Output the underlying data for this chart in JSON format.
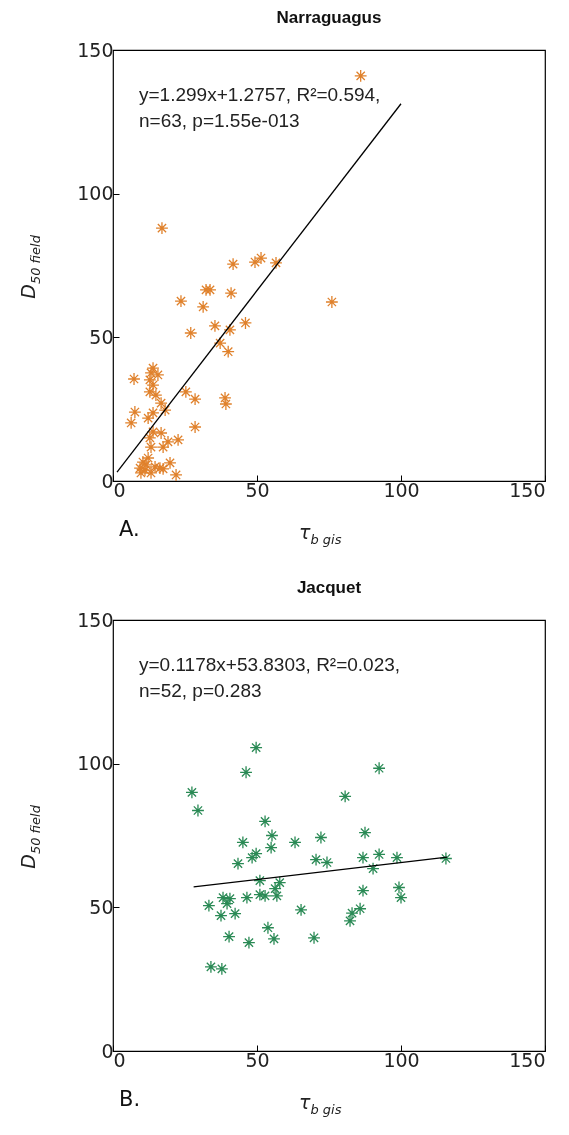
{
  "chart_data": [
    {
      "type": "scatter",
      "title": "Narraguagus",
      "xlabel": "τ$_{b gis}$",
      "ylabel": "D$_{50 field}$",
      "xlim": [
        0,
        150
      ],
      "ylim": [
        0,
        150
      ],
      "xticks": [
        0,
        50,
        100,
        150
      ],
      "yticks": [
        0,
        50,
        100,
        150
      ],
      "grid": false,
      "marker": "cross",
      "annotations": [
        "y=1.299x+1.2757, R²=0.594,",
        "n=63, p=1.55e-013",
        "A."
      ],
      "series": [
        {
          "type": "scatter",
          "color": "#e0812b",
          "x": [
            86,
            17,
            76,
            41.7,
            49.3,
            51.4,
            56.6,
            32.3,
            33.7,
            41,
            23.6,
            31.3,
            35.4,
            27,
            40.6,
            46,
            37.2,
            40,
            13.9,
            13.2,
            15.6,
            7.3,
            12.8,
            13.9,
            12.8,
            25.3,
            14.9,
            28.5,
            38.9,
            39.2,
            16.7,
            7.6,
            13.9,
            18.1,
            12.2,
            6.3,
            28.5,
            13.9,
            16.7,
            12.8,
            19.1,
            22.6,
            17.4,
            13.2,
            12.2,
            10.4,
            19.8,
            11.5,
            14.6,
            16.3,
            9.4,
            11.1,
            21.9,
            9.7,
            13.2,
            17.4
          ],
          "values": [
            141,
            88,
            62.3,
            75.5,
            76.2,
            77.6,
            75.9,
            66.5,
            66.5,
            65.4,
            62.6,
            60.6,
            54,
            51.5,
            52.6,
            55,
            48,
            45,
            39.3,
            37.6,
            36.9,
            35.5,
            35.2,
            33.4,
            31,
            31,
            29.9,
            28.5,
            28.9,
            26.8,
            27.1,
            24,
            23.7,
            24.7,
            21.9,
            20.2,
            18.8,
            17.1,
            16.7,
            15,
            13.6,
            14.3,
            11.8,
            11.8,
            8,
            6.6,
            6.3,
            5.6,
            4.9,
            4.5,
            4.5,
            3.8,
            2.1,
            2.8,
            2.8,
            4.2
          ]
        },
        {
          "type": "line",
          "marker": "none",
          "color": "#000000",
          "x": [
            1.4,
            100
          ],
          "values": [
            3.1,
            131.3
          ]
        }
      ]
    },
    {
      "type": "scatter",
      "title": "Jacquet",
      "xlabel": "τ$_{b gis}$",
      "ylabel": "D$_{50 field}$",
      "xlim": [
        0,
        150
      ],
      "ylim": [
        0,
        150
      ],
      "xticks": [
        0,
        50,
        100,
        150
      ],
      "yticks": [
        0,
        50,
        100,
        150
      ],
      "grid": false,
      "marker": "cross",
      "annotations": [
        "y=0.1178x+53.8303, R²=0.023,",
        "n=52, p=0.283",
        "B."
      ],
      "series": [
        {
          "type": "scatter",
          "color": "#2a8a55",
          "x": [
            49.7,
            46.2,
            27.4,
            29.5,
            92.4,
            80.6,
            52.8,
            87.5,
            55.2,
            45.1,
            63.2,
            72.2,
            54.9,
            49.7,
            48.3,
            86.8,
            92.4,
            98.6,
            115.6,
            70.5,
            74.3,
            43.4,
            90.3,
            51,
            57.9,
            56.3,
            86.8,
            99.3,
            100,
            46.5,
            51,
            52.8,
            56.9,
            38.2,
            40.6,
            39.6,
            33.3,
            42.4,
            37.5,
            65.3,
            83,
            85.8,
            82.3,
            53.8,
            40.3,
            47.2,
            55.9,
            69.8,
            34,
            37.8
          ],
          "values": [
            105.6,
            97,
            90,
            83.7,
            98.4,
            88.6,
            79.9,
            76,
            75,
            72.6,
            72.6,
            74.3,
            70.8,
            68.7,
            67.3,
            67.3,
            68.4,
            67.3,
            67,
            66.6,
            65.6,
            65.2,
            63.5,
            59.3,
            58.6,
            56.5,
            55.8,
            56.9,
            53.4,
            53.4,
            54.4,
            54,
            54,
            53.4,
            53,
            51.3,
            50.6,
            47.8,
            47.1,
            49.1,
            48,
            49.5,
            45.3,
            42.9,
            39.8,
            37.7,
            39,
            39.4,
            29.3,
            28.6
          ]
        },
        {
          "type": "line",
          "marker": "none",
          "color": "#000000",
          "x": [
            28,
            116
          ],
          "values": [
            57.1,
            67.5
          ]
        }
      ]
    }
  ]
}
